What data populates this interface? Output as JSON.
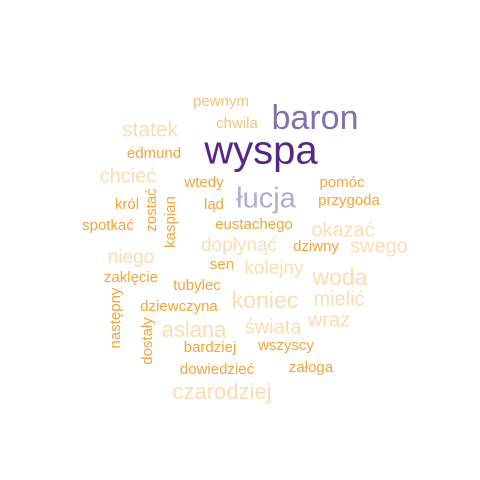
{
  "colors": {
    "background": "#ffffff",
    "darkest": "#542788",
    "dark": "#8073ac",
    "medium": "#b2abd2",
    "orange": "#f4a43a",
    "light_orange": "#f7c27a",
    "pale_orange": "#fbdcb2"
  },
  "words": [
    {
      "text": "wyspa",
      "color_key": "darkest"
    },
    {
      "text": "baron",
      "color_key": "dark"
    },
    {
      "text": "łucja",
      "color_key": "medium"
    },
    {
      "text": "pewnym",
      "color_key": "light_orange"
    },
    {
      "text": "chwila",
      "color_key": "light_orange"
    },
    {
      "text": "statek",
      "color_key": "pale_orange"
    },
    {
      "text": "edmund",
      "color_key": "orange"
    },
    {
      "text": "chcieć",
      "color_key": "pale_orange"
    },
    {
      "text": "wtedy",
      "color_key": "orange"
    },
    {
      "text": "pomóc",
      "color_key": "orange"
    },
    {
      "text": "przygoda",
      "color_key": "orange"
    },
    {
      "text": "król",
      "color_key": "orange"
    },
    {
      "text": "zostać",
      "color_key": "orange"
    },
    {
      "text": "ląd",
      "color_key": "orange"
    },
    {
      "text": "spotkać",
      "color_key": "orange"
    },
    {
      "text": "kaspian",
      "color_key": "orange"
    },
    {
      "text": "eustachego",
      "color_key": "orange"
    },
    {
      "text": "okazać",
      "color_key": "pale_orange"
    },
    {
      "text": "dopłynąć",
      "color_key": "pale_orange"
    },
    {
      "text": "dziwny",
      "color_key": "orange"
    },
    {
      "text": "swego",
      "color_key": "pale_orange"
    },
    {
      "text": "niego",
      "color_key": "pale_orange"
    },
    {
      "text": "sen",
      "color_key": "orange"
    },
    {
      "text": "kolejny",
      "color_key": "pale_orange"
    },
    {
      "text": "woda",
      "color_key": "pale_orange"
    },
    {
      "text": "zaklęcie",
      "color_key": "orange"
    },
    {
      "text": "tubylec",
      "color_key": "orange"
    },
    {
      "text": "następny",
      "color_key": "orange"
    },
    {
      "text": "koniec",
      "color_key": "pale_orange"
    },
    {
      "text": "mielić",
      "color_key": "pale_orange"
    },
    {
      "text": "dziewczyna",
      "color_key": "orange"
    },
    {
      "text": "aslana",
      "color_key": "pale_orange"
    },
    {
      "text": "świata",
      "color_key": "pale_orange"
    },
    {
      "text": "wraz",
      "color_key": "pale_orange"
    },
    {
      "text": "dostały",
      "color_key": "orange"
    },
    {
      "text": "bardziej",
      "color_key": "orange"
    },
    {
      "text": "wszyscy",
      "color_key": "orange"
    },
    {
      "text": "dowiedzieć",
      "color_key": "orange"
    },
    {
      "text": "załoga",
      "color_key": "orange"
    },
    {
      "text": "czarodziej",
      "color_key": "pale_orange"
    }
  ]
}
